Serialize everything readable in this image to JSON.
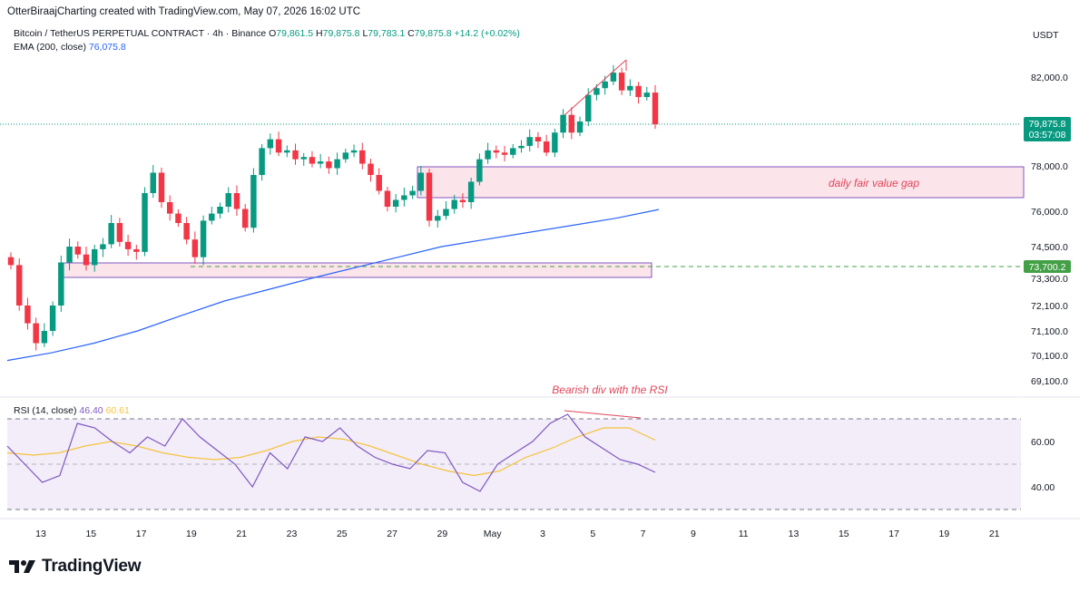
{
  "header": {
    "credit": "OtterBiraajCharting created with TradingView.com, May 07, 2026 16:02 UTC"
  },
  "symbol": {
    "name": "Bitcoin / TetherUS PERPETUAL CONTRACT · 4h · Binance",
    "o_label": "O",
    "o_value": "79,861.5",
    "h_label": "H",
    "h_value": "79,875.8",
    "l_label": "L",
    "l_value": "79,783.1",
    "c_label": "C",
    "c_value": "79,875.8",
    "change": "+14.2 (+0.02%)"
  },
  "ema": {
    "label": "EMA (200, close)",
    "value": "76,075.8"
  },
  "currency": "USDT",
  "rsi_legend": {
    "label": "RSI (14, close)",
    "rsi_value": "46.40",
    "ma_value": "60.61"
  },
  "price_badge": {
    "price": "79,875.8",
    "countdown": "03:57:08"
  },
  "level_badge": {
    "price": "73,700.2"
  },
  "annotations": {
    "fvg": "daily fair value gap",
    "divergence": "Bearish div with the RSI"
  },
  "footer": {
    "brand": "TradingView"
  },
  "colors": {
    "up": "#089981",
    "down": "#f23645",
    "ema": "#2962ff",
    "rsi": "#7e57c2",
    "rsi_ma": "#f6c33f",
    "zone_fill": "#fbe4ea",
    "zone_border": "#7e57c2",
    "annotation": "#e0475a",
    "level": "#43a047"
  },
  "chart_data": {
    "type": "candlestick",
    "timeframe": "4h",
    "price_ticks": [
      "82,000.0",
      "78,000.0",
      "76,000.0",
      "74,500.0",
      "73,300.0",
      "72,100.0",
      "71,100.0",
      "70,100.0",
      "69,100.0"
    ],
    "date_ticks": [
      "13",
      "15",
      "17",
      "19",
      "21",
      "23",
      "25",
      "27",
      "29",
      "May",
      "3",
      "5",
      "7",
      "9",
      "11",
      "13",
      "15",
      "17",
      "19",
      "21"
    ],
    "rsi_ticks": [
      "60.00",
      "40.00"
    ],
    "last_price": 79875.8,
    "horizontal_level": 73700.2,
    "fair_value_gap": [
      76600,
      77950
    ],
    "support_zone": [
      73150,
      73750
    ],
    "ohlc_approx_closes": [
      73800,
      72100,
      71400,
      70600,
      71100,
      72100,
      73900,
      74500,
      74200,
      73800,
      74400,
      74600,
      75500,
      74700,
      74400,
      74300,
      76800,
      77700,
      76400,
      75900,
      75500,
      74800,
      74100,
      75600,
      75900,
      76200,
      76800,
      76100,
      75300,
      77600,
      78800,
      79200,
      78600,
      78700,
      78300,
      78400,
      78100,
      78200,
      77900,
      78300,
      78600,
      78700,
      78100,
      77600,
      76900,
      76200,
      76500,
      76700,
      76900,
      77700,
      75600,
      75800,
      76100,
      76500,
      76400,
      77300,
      78300,
      78700,
      78600,
      78500,
      78800,
      78900,
      79300,
      79100,
      78600,
      79500,
      80300,
      79500,
      80000,
      81200,
      81500,
      81800,
      82200,
      81400,
      81600,
      81100,
      81300,
      79875.8
    ],
    "ema200": [
      69900,
      70200,
      70600,
      71100,
      71700,
      72300,
      72800,
      73300,
      73700,
      74100,
      74500,
      74800,
      75100,
      75400,
      75700,
      76075.8
    ],
    "rsi": [
      58,
      50,
      42,
      45,
      68,
      66,
      60,
      55,
      62,
      58,
      70,
      62,
      56,
      50,
      40,
      55,
      48,
      62,
      60,
      66,
      58,
      53,
      50,
      48,
      56,
      55,
      42,
      38,
      50,
      55,
      60,
      68,
      72,
      62,
      57,
      52,
      50,
      46.4
    ],
    "rsi_ma": [
      55,
      54,
      55,
      58,
      60,
      58,
      55,
      53,
      52,
      53,
      56,
      60,
      62,
      61,
      58,
      54,
      50,
      47,
      45,
      47,
      53,
      57,
      62,
      66,
      66,
      60.61
    ],
    "series": [
      {
        "name": "EMA (200, close)"
      },
      {
        "name": "RSI (14, close)"
      }
    ]
  }
}
